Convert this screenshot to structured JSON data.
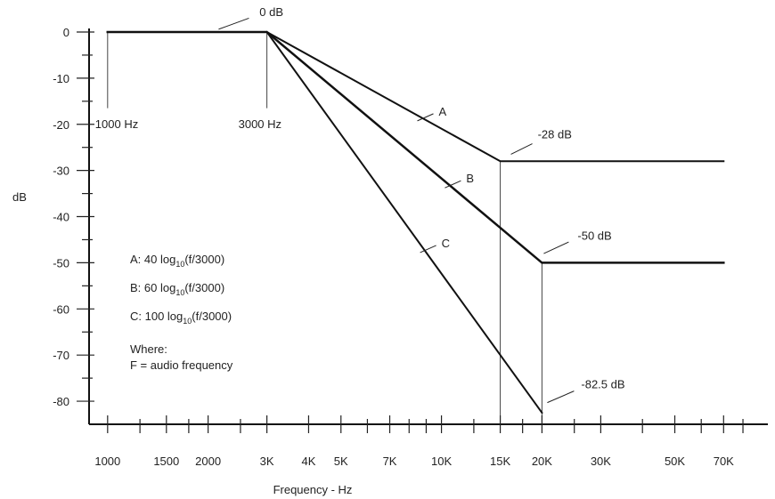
{
  "chart_data": {
    "type": "line",
    "title": "",
    "xlabel": "Frequency - Hz",
    "ylabel": "dB",
    "xscale": "log",
    "xlim": [
      880,
      95000
    ],
    "ylim": [
      -85,
      0
    ],
    "grid": false,
    "y_ticks": [
      0,
      -10,
      -20,
      -30,
      -40,
      -50,
      -60,
      -70,
      -80
    ],
    "y_tick_labels": [
      "0",
      "-10",
      "-20",
      "-30",
      "-40",
      "-50",
      "-60",
      "-70",
      "-80"
    ],
    "x_ticks": [
      1000,
      1500,
      2000,
      3000,
      4000,
      5000,
      7000,
      10000,
      15000,
      20000,
      30000,
      50000,
      70000
    ],
    "x_tick_labels": [
      "1000",
      "1500",
      "2000",
      "3K",
      "4K",
      "5K",
      "7K",
      "10K",
      "15K",
      "20K",
      "30K",
      "50K",
      "70K"
    ],
    "series": [
      {
        "name": "A",
        "x": [
          1000,
          3000,
          15000,
          70000
        ],
        "y": [
          0,
          0,
          -28,
          -28
        ],
        "stroke_width": 2
      },
      {
        "name": "B",
        "x": [
          1000,
          3000,
          20000,
          70000
        ],
        "y": [
          0,
          0,
          -50,
          -50
        ],
        "stroke_width": 2.5
      },
      {
        "name": "C",
        "x": [
          3000,
          20000
        ],
        "y": [
          0,
          -82.5
        ],
        "stroke_width": 2
      }
    ],
    "vertical_markers": [
      {
        "x": 1000,
        "y_from": 0,
        "y_to": -16.5
      },
      {
        "x": 3000,
        "y_from": 0,
        "y_to": -16.5
      },
      {
        "x": 15000,
        "y_from": -28,
        "y_to": -85
      },
      {
        "x": 20000,
        "y_from": -50,
        "y_to": -85
      }
    ],
    "annotations": [
      {
        "text": "1000 Hz",
        "x": 1000,
        "y": -20
      },
      {
        "text": "3000 Hz",
        "x": 3000,
        "y": -20
      },
      {
        "text": "0 dB",
        "x": 2000,
        "y": 3.5
      },
      {
        "text": "-28 dB",
        "x": 15000,
        "y": -23
      },
      {
        "text": "-50 dB",
        "x": 20000,
        "y": -45
      },
      {
        "text": "-82.5 dB",
        "x": 20000,
        "y": -77
      }
    ],
    "legend_lines": [
      {
        "letter": "A",
        "prefix": "A: 40 log",
        "sub": "10",
        "suffix": "(f/3000)"
      },
      {
        "letter": "B",
        "prefix": "B: 60 log",
        "sub": "10",
        "suffix": "(f/3000)"
      },
      {
        "letter": "C",
        "prefix": "C: 100 log",
        "sub": "10",
        "suffix": "(f/3000)"
      }
    ],
    "where_lines": [
      "Where:",
      "F = audio frequency"
    ]
  }
}
